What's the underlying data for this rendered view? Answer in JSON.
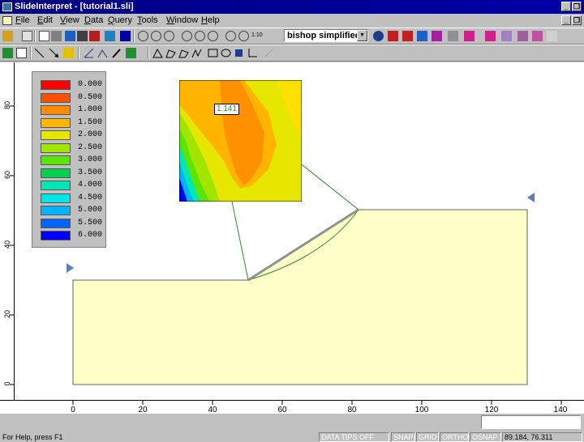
{
  "window": {
    "title": "SlideInterpret - [tutorial1.sli]"
  },
  "menu": [
    "File",
    "Edit",
    "View",
    "Data",
    "Query",
    "Tools",
    "Window",
    "Help"
  ],
  "toolbar": {
    "method": "bishop simplified",
    "zoom_ratio_label": "1:10"
  },
  "legend": {
    "items": [
      {
        "label": "0.000",
        "color": "#ff0000"
      },
      {
        "label": "0.500",
        "color": "#ff5000"
      },
      {
        "label": "1.000",
        "color": "#ff8c00"
      },
      {
        "label": "1.500",
        "color": "#ffb400"
      },
      {
        "label": "2.000",
        "color": "#e6e600"
      },
      {
        "label": "2.500",
        "color": "#a0e600"
      },
      {
        "label": "3.000",
        "color": "#5ae600"
      },
      {
        "label": "3.500",
        "color": "#00d250"
      },
      {
        "label": "4.000",
        "color": "#00e6b4"
      },
      {
        "label": "4.500",
        "color": "#00e6e6"
      },
      {
        "label": "5.000",
        "color": "#00b4ff"
      },
      {
        "label": "5.500",
        "color": "#0064ff"
      },
      {
        "label": "6.000",
        "color": "#0000ff"
      }
    ]
  },
  "factor_of_safety": "1.141",
  "ruler": {
    "x_ticks": [
      "0",
      "20",
      "40",
      "60",
      "80",
      "100",
      "120",
      "140"
    ],
    "y_ticks": [
      "0",
      "20",
      "40",
      "60",
      "80"
    ]
  },
  "status": {
    "help": "For Help, press F1",
    "data_tips": "DATA TIPS OFF",
    "snap": "SNAP",
    "grid": "GRID",
    "ortho": "ORTHO",
    "osnap": "OSNAP",
    "coords": "89.184, 76.311"
  },
  "colors": {
    "slope": "#ffffc8",
    "slip_circle": "#2e8b2e",
    "marker": "#5b7fb0"
  }
}
